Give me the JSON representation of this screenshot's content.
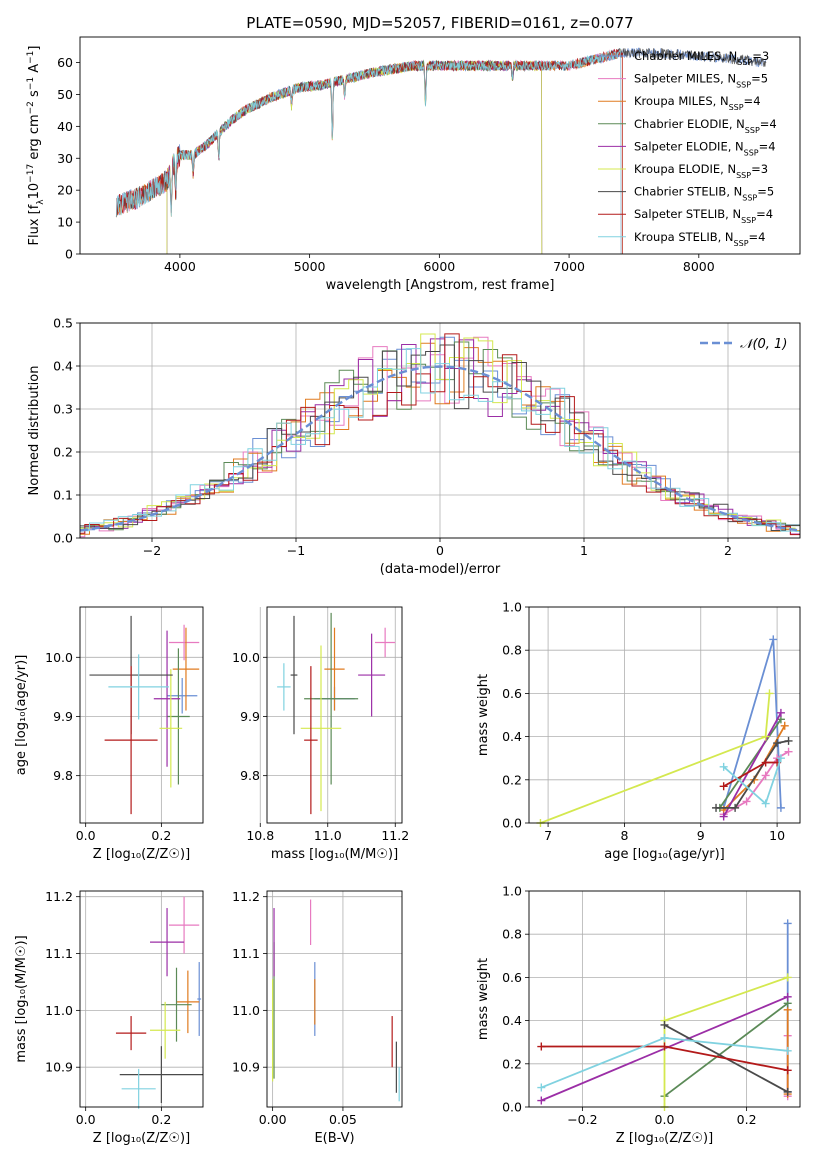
{
  "colors": {
    "Chabrier MILES": "#6a8fd4",
    "Salpeter MILES": "#e77ac0",
    "Kroupa MILES": "#e07b20",
    "Chabrier ELODIE": "#5b8a57",
    "Salpeter ELODIE": "#9b2ea6",
    "Kroupa ELODIE": "#d4e84f",
    "Chabrier STELIB": "#4a4a4a",
    "Salpeter STELIB": "#b31a1a",
    "Kroupa STELIB": "#80d2e0"
  },
  "chart_data": [
    {
      "id": "spectrum",
      "type": "line",
      "title": "PLATE=0590, MJD=52057, FIBERID=0161, z=0.077",
      "xlabel": "wavelength [Angstrom, rest frame]",
      "ylabel_parts": [
        "Flux [f",
        "λ",
        "10",
        "−17",
        " erg cm",
        "−2",
        " s",
        "−1",
        " A",
        "−1",
        "]"
      ],
      "xlim": [
        3230,
        8780
      ],
      "ylim": [
        0,
        68
      ],
      "xticks": [
        4000,
        5000,
        6000,
        7000,
        8000
      ],
      "yticks": [
        0,
        10,
        20,
        30,
        40,
        50,
        60
      ],
      "grid": false,
      "legend_position": "top-right",
      "series": [
        {
          "name": "Chabrier MILES",
          "nssp": 3,
          "range": [
            3510,
            8520
          ]
        },
        {
          "name": "Salpeter MILES",
          "nssp": 5,
          "range": [
            3510,
            7400
          ]
        },
        {
          "name": "Kroupa MILES",
          "nssp": 4,
          "range": [
            3510,
            7410
          ]
        },
        {
          "name": "Chabrier ELODIE",
          "nssp": 4,
          "range": [
            3900,
            6790
          ]
        },
        {
          "name": "Salpeter ELODIE",
          "nssp": 4,
          "range": [
            3900,
            6790
          ]
        },
        {
          "name": "Kroupa ELODIE",
          "nssp": 3,
          "range": [
            3900,
            6790
          ]
        },
        {
          "name": "Chabrier STELIB",
          "nssp": 5,
          "range": [
            3510,
            8520
          ]
        },
        {
          "name": "Salpeter STELIB",
          "nssp": 4,
          "range": [
            3510,
            7410
          ]
        },
        {
          "name": "Kroupa STELIB",
          "nssp": 4,
          "range": [
            3510,
            7400
          ]
        }
      ],
      "continuum": [
        [
          3510,
          15
        ],
        [
          3700,
          18
        ],
        [
          3900,
          23
        ],
        [
          3950,
          28
        ],
        [
          4000,
          31
        ],
        [
          4100,
          31
        ],
        [
          4200,
          34
        ],
        [
          4300,
          38
        ],
        [
          4400,
          42
        ],
        [
          4500,
          45
        ],
        [
          4700,
          49
        ],
        [
          4900,
          52
        ],
        [
          5100,
          53
        ],
        [
          5300,
          55
        ],
        [
          5500,
          57
        ],
        [
          5800,
          59
        ],
        [
          6000,
          59
        ],
        [
          6200,
          59
        ],
        [
          6500,
          59
        ],
        [
          6800,
          59
        ],
        [
          7000,
          59
        ],
        [
          7200,
          61
        ],
        [
          7400,
          63
        ],
        [
          7700,
          63
        ],
        [
          8000,
          62
        ],
        [
          8300,
          61
        ],
        [
          8520,
          60
        ]
      ],
      "absorption": [
        [
          3933,
          12
        ],
        [
          3968,
          10
        ],
        [
          4102,
          6
        ],
        [
          4300,
          8
        ],
        [
          4861,
          5
        ],
        [
          5175,
          18
        ],
        [
          5270,
          5
        ],
        [
          5893,
          12
        ],
        [
          6563,
          4
        ]
      ]
    },
    {
      "id": "residuals",
      "type": "line",
      "xlabel": "(data-model)/error",
      "ylabel": "Normed distribution",
      "xlim": [
        -2.5,
        2.5
      ],
      "ylim": [
        0,
        0.5
      ],
      "xticks": [
        -2,
        -1,
        0,
        1,
        2
      ],
      "xticklabels": [
        "−2",
        "−1",
        "0",
        "1",
        "2"
      ],
      "yticks": [
        0,
        0.1,
        0.2,
        0.3,
        0.4,
        0.5
      ],
      "yticklabels": [
        "0.0",
        "0.1",
        "0.2",
        "0.3",
        "0.4",
        "0.5"
      ],
      "grid": true,
      "legend_position": "top-right",
      "legend_label": "𝒩(0, 1)",
      "bin_width": 0.1
    },
    {
      "id": "age_vs_Z",
      "type": "scatter",
      "xlabel": "Z [log₁₀(Z/Z☉)]",
      "ylabel": "age  [log₁₀(age/yr)]",
      "xlim": [
        -0.015,
        0.31
      ],
      "ylim": [
        9.72,
        10.085
      ],
      "xticks": [
        0.0,
        0.2
      ],
      "xticklabels": [
        "0.0",
        "0.2"
      ],
      "yticks": [
        9.8,
        9.9,
        10.0
      ],
      "yticklabels": [
        "9.8",
        "9.9",
        "10.0"
      ],
      "grid": true,
      "points": [
        {
          "s": "Chabrier MILES",
          "x": 0.255,
          "y": 9.935,
          "ex": 0.04,
          "ey": 0.03
        },
        {
          "s": "Salpeter MILES",
          "x": 0.26,
          "y": 10.025,
          "ex": 0.04,
          "ey": 0.03
        },
        {
          "s": "Kroupa MILES",
          "x": 0.265,
          "y": 9.98,
          "ex": 0.035,
          "ey": 0.07
        },
        {
          "s": "Chabrier ELODIE",
          "x": 0.245,
          "y": 9.9,
          "ex": 0.03,
          "ey": 0.115
        },
        {
          "s": "Salpeter ELODIE",
          "x": 0.215,
          "y": 9.93,
          "ex": 0.035,
          "ey": 0.115
        },
        {
          "s": "Kroupa ELODIE",
          "x": 0.225,
          "y": 9.88,
          "ex": 0.03,
          "ey": 0.1
        },
        {
          "s": "Chabrier STELIB",
          "x": 0.12,
          "y": 9.97,
          "ex": 0.11,
          "ey": 0.1
        },
        {
          "s": "Salpeter STELIB",
          "x": 0.12,
          "y": 9.86,
          "ex": 0.07,
          "ey": 0.125
        },
        {
          "s": "Kroupa STELIB",
          "x": 0.14,
          "y": 9.95,
          "ex": 0.08,
          "ey": 0.055
        }
      ]
    },
    {
      "id": "age_vs_mass",
      "type": "scatter",
      "xlabel": "mass [log₁₀(M/M☉)]",
      "ylabel": "",
      "xlim": [
        10.82,
        11.22
      ],
      "ylim": [
        9.72,
        10.085
      ],
      "xticks": [
        10.8,
        11.0,
        11.2
      ],
      "xticklabels": [
        "10.8",
        "11.0",
        "11.2"
      ],
      "yticks": [
        9.8,
        9.9,
        10.0
      ],
      "yticklabels": [
        "9.8",
        "9.9",
        "10.0"
      ],
      "grid": true,
      "points": [
        {
          "s": "Chabrier MILES",
          "x": 11.02,
          "y": 9.93,
          "ex": 0.06,
          "ey": 0.02
        },
        {
          "s": "Salpeter MILES",
          "x": 11.17,
          "y": 10.025,
          "ex": 0.03,
          "ey": 0.025
        },
        {
          "s": "Kroupa MILES",
          "x": 11.02,
          "y": 9.98,
          "ex": 0.03,
          "ey": 0.07
        },
        {
          "s": "Chabrier ELODIE",
          "x": 11.01,
          "y": 9.93,
          "ex": 0.08,
          "ey": 0.145
        },
        {
          "s": "Salpeter ELODIE",
          "x": 11.13,
          "y": 9.97,
          "ex": 0.04,
          "ey": 0.07
        },
        {
          "s": "Kroupa ELODIE",
          "x": 10.98,
          "y": 9.88,
          "ex": 0.06,
          "ey": 0.14
        },
        {
          "s": "Chabrier STELIB",
          "x": 10.9,
          "y": 9.97,
          "ex": 0.01,
          "ey": 0.1
        },
        {
          "s": "Salpeter STELIB",
          "x": 10.95,
          "y": 9.86,
          "ex": 0.02,
          "ey": 0.125
        },
        {
          "s": "Kroupa STELIB",
          "x": 10.87,
          "y": 9.95,
          "ex": 0.02,
          "ey": 0.04
        }
      ]
    },
    {
      "id": "mass_vs_Z",
      "type": "scatter",
      "xlabel": "Z [log₁₀(Z/Z☉)]",
      "ylabel": "mass [log₁₀(M/M☉)]",
      "xlim": [
        -0.015,
        0.31
      ],
      "ylim": [
        10.83,
        11.21
      ],
      "xticks": [
        0.0,
        0.2
      ],
      "xticklabels": [
        "0.0",
        "0.2"
      ],
      "yticks": [
        10.9,
        11.0,
        11.1,
        11.2
      ],
      "yticklabels": [
        "10.9",
        "11.0",
        "11.1",
        "11.2"
      ],
      "grid": true,
      "points": [
        {
          "s": "Chabrier MILES",
          "x": 0.3,
          "y": 11.02,
          "ex": 0.005,
          "ey": 0.065
        },
        {
          "s": "Salpeter MILES",
          "x": 0.26,
          "y": 11.15,
          "ex": 0.04,
          "ey": 0.05
        },
        {
          "s": "Kroupa MILES",
          "x": 0.27,
          "y": 11.015,
          "ex": 0.03,
          "ey": 0.055
        },
        {
          "s": "Chabrier ELODIE",
          "x": 0.24,
          "y": 11.01,
          "ex": 0.04,
          "ey": 0.065
        },
        {
          "s": "Salpeter ELODIE",
          "x": 0.215,
          "y": 11.12,
          "ex": 0.045,
          "ey": 0.06
        },
        {
          "s": "Kroupa ELODIE",
          "x": 0.21,
          "y": 10.965,
          "ex": 0.04,
          "ey": 0.05
        },
        {
          "s": "Chabrier STELIB",
          "x": 0.2,
          "y": 10.887,
          "ex": 0.11,
          "ey": 0.05
        },
        {
          "s": "Salpeter STELIB",
          "x": 0.12,
          "y": 10.96,
          "ex": 0.04,
          "ey": 0.03
        },
        {
          "s": "Kroupa STELIB",
          "x": 0.14,
          "y": 10.862,
          "ex": 0.045,
          "ey": 0.035
        }
      ]
    },
    {
      "id": "mass_vs_ebv",
      "type": "scatter",
      "xlabel": "E(B-V)",
      "ylabel": "",
      "xlim": [
        -0.004,
        0.092
      ],
      "ylim": [
        10.83,
        11.21
      ],
      "xticks": [
        0.0,
        0.05
      ],
      "xticklabels": [
        "0.00",
        "0.05"
      ],
      "yticks": [
        10.9,
        11.0,
        11.1,
        11.2
      ],
      "yticklabels": [
        "10.9",
        "11.0",
        "11.1",
        "11.2"
      ],
      "grid": true,
      "points": [
        {
          "s": "Chabrier MILES",
          "x": 0.03,
          "y": 11.02,
          "ex": 0,
          "ey": 0.065
        },
        {
          "s": "Salpeter MILES",
          "x": 0.027,
          "y": 11.155,
          "ex": 0,
          "ey": 0.04
        },
        {
          "s": "Kroupa MILES",
          "x": 0.03,
          "y": 11.015,
          "ex": 0,
          "ey": 0.04
        },
        {
          "s": "Chabrier ELODIE",
          "x": 0.001,
          "y": 11.0,
          "ex": 0,
          "ey": 0.12
        },
        {
          "s": "Salpeter ELODIE",
          "x": 0.001,
          "y": 11.12,
          "ex": 0,
          "ey": 0.06
        },
        {
          "s": "Kroupa ELODIE",
          "x": 0.0,
          "y": 10.965,
          "ex": 0,
          "ey": 0.09
        },
        {
          "s": "Chabrier STELIB",
          "x": 0.088,
          "y": 10.9,
          "ex": 0,
          "ey": 0.045
        },
        {
          "s": "Salpeter STELIB",
          "x": 0.085,
          "y": 10.945,
          "ex": 0,
          "ey": 0.045
        },
        {
          "s": "Kroupa STELIB",
          "x": 0.09,
          "y": 10.87,
          "ex": 0,
          "ey": 0.03
        }
      ]
    },
    {
      "id": "weight_vs_age",
      "type": "line",
      "xlabel": "age  [log₁₀(age/yr)]",
      "ylabel": "mass weight",
      "xlim": [
        6.75,
        10.3
      ],
      "ylim": [
        0,
        1
      ],
      "xticks": [
        7,
        8,
        9,
        10
      ],
      "xticklabels": [
        "7",
        "8",
        "9",
        "10"
      ],
      "yticks": [
        0,
        0.2,
        0.4,
        0.6,
        0.8,
        1.0
      ],
      "yticklabels": [
        "0.0",
        "0.2",
        "0.4",
        "0.6",
        "0.8",
        "1.0"
      ],
      "grid": true,
      "series": [
        {
          "s": "Chabrier MILES",
          "points": [
            [
              9.3,
              0.07
            ],
            [
              9.95,
              0.85
            ],
            [
              10.05,
              0.07
            ]
          ]
        },
        {
          "s": "Salpeter MILES",
          "points": [
            [
              9.3,
              0.04
            ],
            [
              9.6,
              0.1
            ],
            [
              9.85,
              0.22
            ],
            [
              10.0,
              0.3
            ],
            [
              10.15,
              0.33
            ]
          ]
        },
        {
          "s": "Kroupa MILES",
          "points": [
            [
              9.3,
              0.06
            ],
            [
              9.7,
              0.2
            ],
            [
              10.1,
              0.45
            ]
          ]
        },
        {
          "s": "Chabrier ELODIE",
          "points": [
            [
              9.25,
              0.07
            ],
            [
              10.05,
              0.48
            ]
          ]
        },
        {
          "s": "Salpeter ELODIE",
          "points": [
            [
              9.3,
              0.03
            ],
            [
              10.05,
              0.51
            ]
          ]
        },
        {
          "s": "Kroupa ELODIE",
          "points": [
            [
              6.9,
              0.0
            ],
            [
              9.85,
              0.4
            ],
            [
              9.9,
              0.6
            ]
          ]
        },
        {
          "s": "Chabrier STELIB",
          "points": [
            [
              9.2,
              0.07
            ],
            [
              9.45,
              0.07
            ],
            [
              10.0,
              0.37
            ],
            [
              10.15,
              0.38
            ]
          ]
        },
        {
          "s": "Salpeter STELIB",
          "points": [
            [
              9.3,
              0.17
            ],
            [
              9.85,
              0.28
            ],
            [
              10.0,
              0.28
            ]
          ]
        },
        {
          "s": "Kroupa STELIB",
          "points": [
            [
              9.3,
              0.26
            ],
            [
              9.85,
              0.09
            ],
            [
              10.05,
              0.3
            ]
          ]
        }
      ]
    },
    {
      "id": "weight_vs_Z",
      "type": "line",
      "xlabel": "Z [log₁₀(Z/Z☉)]",
      "ylabel": "mass weight",
      "xlim": [
        -0.33,
        0.33
      ],
      "ylim": [
        0,
        1
      ],
      "xticks": [
        -0.2,
        0.0,
        0.2
      ],
      "xticklabels": [
        "−0.2",
        "0.0",
        "0.2"
      ],
      "yticks": [
        0,
        0.2,
        0.4,
        0.6,
        0.8,
        1.0
      ],
      "yticklabels": [
        "0.0",
        "0.2",
        "0.4",
        "0.6",
        "0.8",
        "1.0"
      ],
      "grid": true,
      "series": [
        {
          "s": "Chabrier MILES",
          "points": [
            [
              0.3,
              0.07
            ],
            [
              0.3,
              0.85
            ]
          ]
        },
        {
          "s": "Salpeter MILES",
          "points": [
            [
              0.3,
              0.05
            ],
            [
              0.3,
              0.33
            ]
          ]
        },
        {
          "s": "Kroupa MILES",
          "points": [
            [
              0.3,
              0.06
            ],
            [
              0.3,
              0.45
            ]
          ]
        },
        {
          "s": "Chabrier ELODIE",
          "points": [
            [
              0.0,
              0.05
            ],
            [
              0.3,
              0.48
            ]
          ]
        },
        {
          "s": "Salpeter ELODIE",
          "points": [
            [
              -0.3,
              0.03
            ],
            [
              0.3,
              0.51
            ]
          ]
        },
        {
          "s": "Kroupa ELODIE",
          "points": [
            [
              0.0,
              0.0
            ],
            [
              0.0,
              0.4
            ],
            [
              0.3,
              0.6
            ]
          ]
        },
        {
          "s": "Chabrier STELIB",
          "points": [
            [
              0.0,
              0.38
            ],
            [
              0.3,
              0.07
            ]
          ]
        },
        {
          "s": "Salpeter STELIB",
          "points": [
            [
              -0.3,
              0.28
            ],
            [
              0.0,
              0.28
            ],
            [
              0.3,
              0.17
            ]
          ]
        },
        {
          "s": "Kroupa STELIB",
          "points": [
            [
              -0.3,
              0.09
            ],
            [
              0.0,
              0.32
            ],
            [
              0.3,
              0.26
            ]
          ]
        }
      ]
    }
  ]
}
